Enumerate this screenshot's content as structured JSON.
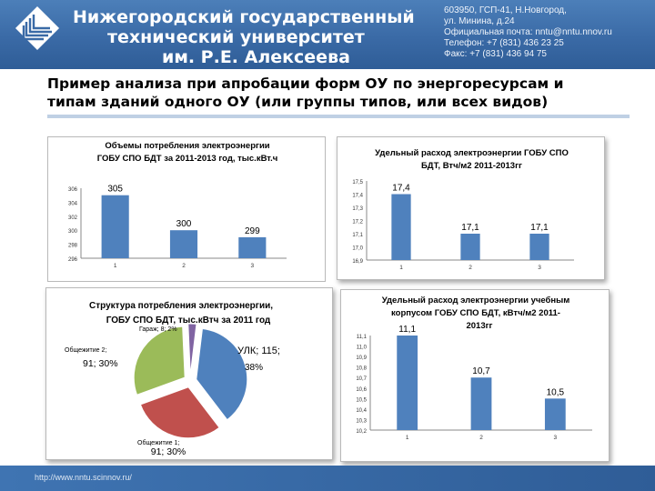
{
  "header": {
    "university_line1": "Нижегородский государственный",
    "university_line2": "технический университет",
    "university_line3": "им. Р.Е. Алексеева",
    "contact_lines": [
      "603950, ГСП-41, Н.Новгород,",
      "ул. Минина, д.24",
      "Официальная почта: nntu@nntu.nnov.ru",
      "Телефон: +7 (831) 436 23 25",
      "Факс: +7 (831) 436 94 75"
    ]
  },
  "slide": {
    "title_line1": "Пример анализа при апробации форм ОУ по энергоресурсам и",
    "title_line2": "типам зданий одного ОУ (или группы типов, или всех видов)"
  },
  "footer": {
    "url": "http://www.nntu.scinnov.ru/"
  },
  "colors": {
    "bar": "#4f81bd",
    "pie_ulk": "#4f81bd",
    "pie_obsh1": "#c0504d",
    "pie_obsh2": "#9bbb59",
    "pie_garage": "#8064a2",
    "header": "#3a6aa6"
  },
  "chart_data": [
    {
      "type": "bar",
      "title": "Объемы потребления электроэнергии",
      "subtitle": "ГОБУ СПО БДТ за 2011-2013 год, тыс.кВт.ч",
      "categories": [
        "1",
        "2",
        "3"
      ],
      "values": [
        305,
        300,
        299
      ],
      "data_labels": [
        "305",
        "300",
        "299"
      ],
      "ylim": [
        296,
        306
      ],
      "yticks": [
        "306",
        "304",
        "302",
        "300",
        "298",
        "296"
      ]
    },
    {
      "type": "bar",
      "title": "Удельный расход электроэнергии ГОБУ СПО",
      "subtitle": "БДТ,  Втч/м2  2011-2013гг",
      "categories": [
        "1",
        "2",
        "3"
      ],
      "values": [
        17.4,
        17.1,
        17.1
      ],
      "data_labels": [
        "17,4",
        "17,1",
        "17,1"
      ],
      "ylim": [
        16.9,
        17.5
      ],
      "yticks": [
        "17,5",
        "17,4",
        "17,3",
        "17,2",
        "17,1",
        "17,0",
        "16,9"
      ]
    },
    {
      "type": "pie",
      "title": "Структура потребления электроэнергии,",
      "subtitle": "ГОБУ СПО БДТ, тыс.кВтч за 2011 год",
      "slices": [
        {
          "name": "УЛК",
          "value": 115,
          "percent": 38,
          "label": "УЛК; 115;",
          "pct_label": "38%"
        },
        {
          "name": "Общежитие 1",
          "value": 91,
          "percent": 30,
          "label": "Общежитие 1;",
          "pct_label": "91; 30%"
        },
        {
          "name": "Общежитие 2",
          "value": 91,
          "percent": 30,
          "label": "Общежитие 2;",
          "pct_label": "91; 30%"
        },
        {
          "name": "Гараж",
          "value": 8,
          "percent": 2,
          "label": "Гараж; 8; 2%",
          "pct_label": ""
        }
      ]
    },
    {
      "type": "bar",
      "title": "Удельный расход электроэнергии учебным",
      "subtitle": "корпусом ГОБУ СПО БДТ, кВтч/м2 2011-",
      "subtitle2": "2013гг",
      "categories": [
        "1",
        "2",
        "3"
      ],
      "values": [
        11.1,
        10.7,
        10.5
      ],
      "data_labels": [
        "11,1",
        "10,7",
        "10,5"
      ],
      "ylim": [
        10.2,
        11.1
      ],
      "yticks": [
        "11,1",
        "11,0",
        "10,9",
        "10,8",
        "10,7",
        "10,6",
        "10,5",
        "10,4",
        "10,3",
        "10,2"
      ]
    }
  ]
}
